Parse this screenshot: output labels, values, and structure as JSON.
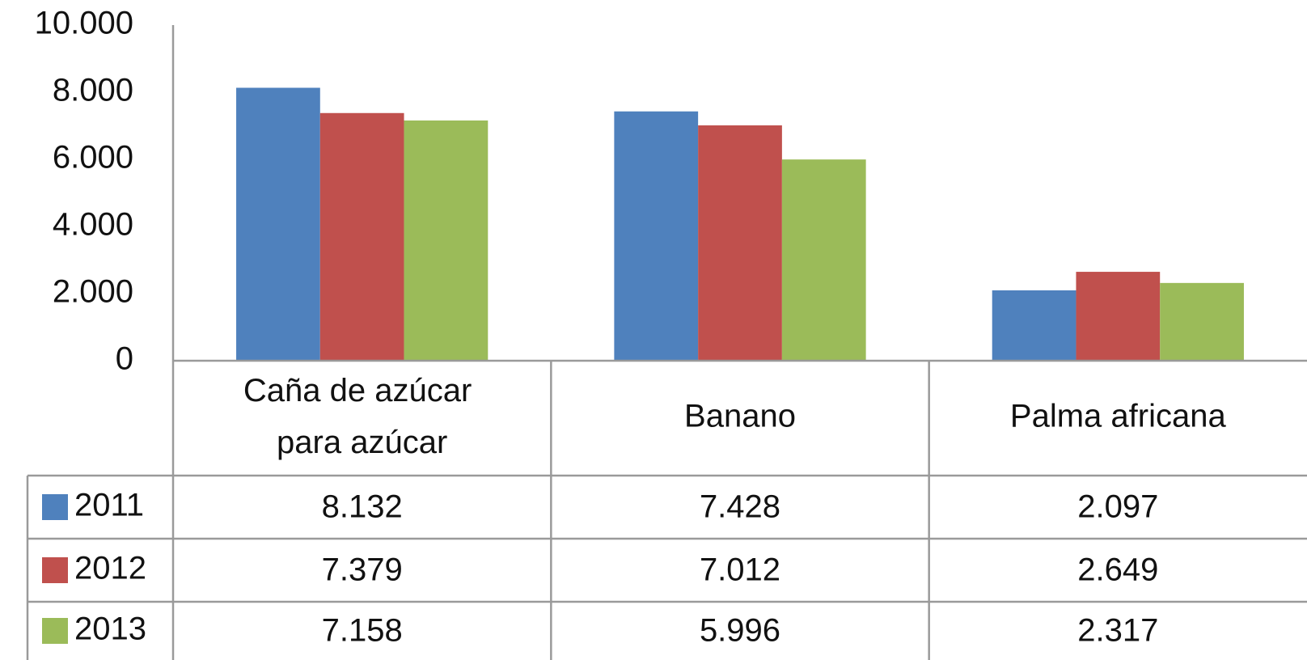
{
  "chart_data": {
    "type": "bar",
    "categories": [
      "Caña de azúcar para azúcar",
      "Banano",
      "Palma africana"
    ],
    "series": [
      {
        "name": "2011",
        "color": "#4f81bd",
        "values": [
          8132,
          7428,
          2097
        ],
        "value_labels": [
          "8.132",
          "7.428",
          "2.097"
        ]
      },
      {
        "name": "2012",
        "color": "#c0504d",
        "values": [
          7379,
          7012,
          2649
        ],
        "value_labels": [
          "7.379",
          "7.012",
          "2.649"
        ]
      },
      {
        "name": "2013",
        "color": "#9bbb59",
        "values": [
          7158,
          5996,
          2317
        ],
        "value_labels": [
          "7.158",
          "5.996",
          "2.317"
        ]
      }
    ],
    "ylim": [
      0,
      10000
    ],
    "yticks": [
      0,
      {
        "value": 2000,
        "label": "2.000"
      },
      {
        "value": 4000,
        "label": "4.000"
      },
      {
        "value": 6000,
        "label": "6.000"
      },
      {
        "value": 8000,
        "label": "8.000"
      },
      {
        "value": 10000,
        "label": "10.000"
      }
    ],
    "grid": false,
    "legend": "table"
  }
}
